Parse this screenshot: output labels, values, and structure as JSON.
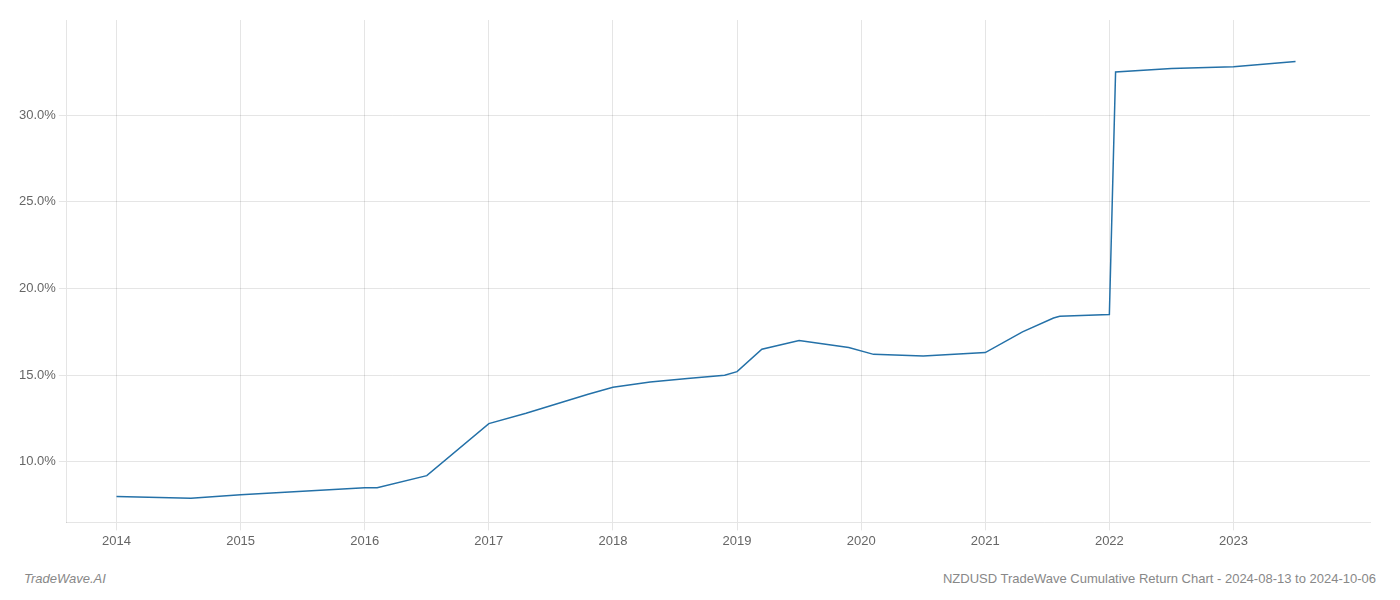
{
  "chart_data": {
    "type": "line",
    "x": [
      2014.0,
      2014.6,
      2015.0,
      2015.5,
      2016.0,
      2016.1,
      2016.5,
      2017.0,
      2017.3,
      2017.8,
      2018.0,
      2018.3,
      2018.6,
      2018.9,
      2019.0,
      2019.2,
      2019.5,
      2019.7,
      2019.9,
      2020.1,
      2020.5,
      2021.0,
      2021.3,
      2021.55,
      2021.6,
      2022.0,
      2022.05,
      2022.5,
      2023.0,
      2023.5
    ],
    "values": [
      8.0,
      7.9,
      8.1,
      8.3,
      8.5,
      8.5,
      9.2,
      12.2,
      12.8,
      13.9,
      14.3,
      14.6,
      14.8,
      15.0,
      15.2,
      16.5,
      17.0,
      16.8,
      16.6,
      16.2,
      16.1,
      16.3,
      17.5,
      18.3,
      18.4,
      18.5,
      32.5,
      32.7,
      32.8,
      33.1
    ],
    "color": "#2471a8",
    "xlim": [
      2013.6,
      2024.1
    ],
    "ylim": [
      6.5,
      35.5
    ],
    "xticks": [
      2014,
      2015,
      2016,
      2017,
      2018,
      2019,
      2020,
      2021,
      2022,
      2023
    ],
    "yticks": [
      {
        "value": 10.0,
        "label": "10.0%"
      },
      {
        "value": 15.0,
        "label": "15.0%"
      },
      {
        "value": 20.0,
        "label": "20.0%"
      },
      {
        "value": 25.0,
        "label": "25.0%"
      },
      {
        "value": 30.0,
        "label": "30.0%"
      }
    ],
    "grid": true,
    "annotations": [
      "TradeWave.AI",
      "NZDUSD TradeWave Cumulative Return Chart - 2024-08-13 to 2024-10-06"
    ]
  }
}
